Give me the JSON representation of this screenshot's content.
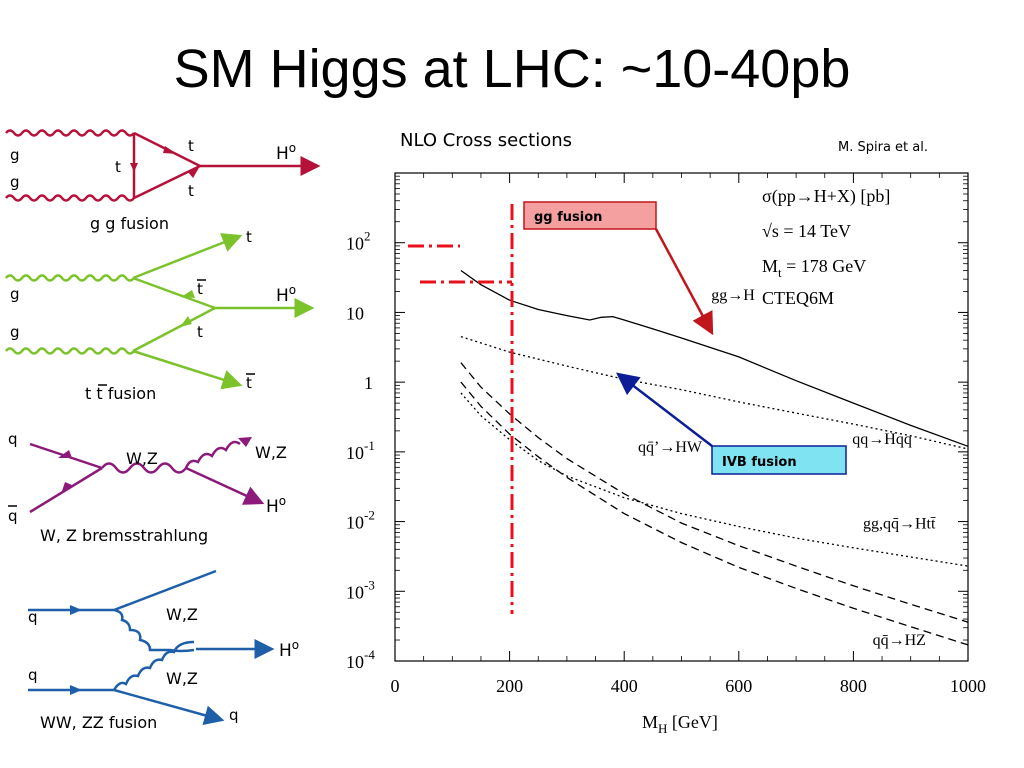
{
  "slide": {
    "title": "SM Higgs at LHC: ~10-40pb"
  },
  "diagrams": {
    "ggf": {
      "g1": "g",
      "g2": "g",
      "t_top": "t",
      "t_mid": "t",
      "t_bot": "t",
      "higgs": "H",
      "higgs_sup": "o",
      "caption": "g g fusion",
      "color": "#b5123a"
    },
    "ttf": {
      "t_out": "t",
      "g1": "g",
      "tbar_mid": "t",
      "higgs": "H",
      "higgs_sup": "o",
      "g2": "g",
      "t_mid": "t",
      "tbar_out": "t",
      "caption": "t t fusion",
      "caption_t1": "t",
      "caption_t2": "t",
      "caption_word": "fusion",
      "color": "#7cc22a"
    },
    "wzb": {
      "q": "q",
      "qbar": "q",
      "wz_mid": "W,Z",
      "wz_out": "W,Z",
      "higgs": "H",
      "higgs_sup": "o",
      "caption": "W, Z bremsstrahlung",
      "color": "#8b1a7a"
    },
    "vbf": {
      "q_in1": "q",
      "q_in2": "q",
      "wz_top": "W,Z",
      "wz_bot": "W,Z",
      "higgs": "H",
      "higgs_sup": "o",
      "q_out": "q",
      "caption": "WW, ZZ fusion",
      "color": "#1f5fa8"
    }
  },
  "plot": {
    "heading": "NLO Cross sections",
    "credit": "M. Spira et al.",
    "xlabel": "M",
    "xlabel_sub": "H",
    "xlabel_unit": "[GeV]",
    "info": {
      "line1": "σ(pp→H+X) [pb]",
      "line2": "√s = 14 TeV",
      "line3_a": "M",
      "line3_sub": "t",
      "line3_b": " = 178 GeV",
      "line4": "CTEQ6M"
    },
    "annotations": {
      "gg_fusion": "gg fusion",
      "gg_fusion_color": "#f4a0a0",
      "ivb_fusion": "IVB fusion",
      "ivb_fusion_color": "#7fe3f2"
    },
    "cutoff_x": 210,
    "cutoff_color": "#e8101a"
  },
  "chart_data": {
    "type": "line",
    "title": "NLO Cross sections",
    "xlabel": "M_H [GeV]",
    "ylabel": "",
    "xlim": [
      0,
      1000
    ],
    "ylim": [
      0.0001,
      1000
    ],
    "y_scale": "log",
    "x_ticks": [
      "0",
      "200",
      "400",
      "600",
      "800",
      "1000"
    ],
    "y_ticks": [
      {
        "base": "10",
        "exp": "-4"
      },
      {
        "base": "10",
        "exp": "-3"
      },
      {
        "base": "10",
        "exp": "-2"
      },
      {
        "base": "10",
        "exp": "-1"
      },
      {
        "base": "1",
        "exp": ""
      },
      {
        "base": "10",
        "exp": ""
      },
      {
        "base": "10",
        "exp": "2"
      }
    ],
    "series": [
      {
        "name": "gg→H",
        "style": "solid",
        "label_x": 590,
        "label_y": 15,
        "x": [
          115,
          150,
          200,
          250,
          300,
          340,
          360,
          380,
          400,
          450,
          500,
          600,
          700,
          800,
          900,
          1000
        ],
        "y": [
          40,
          25,
          15,
          11,
          9,
          7.8,
          8.5,
          8.7,
          7.8,
          5.8,
          4.3,
          2.3,
          1.05,
          0.5,
          0.24,
          0.12
        ]
      },
      {
        "name": "qq→Hqq",
        "style": "dotted",
        "label_x": 850,
        "label_y": 0.13,
        "x": [
          115,
          200,
          300,
          400,
          500,
          600,
          700,
          800,
          900,
          1000
        ],
        "y": [
          4.5,
          2.7,
          1.7,
          1.1,
          0.78,
          0.52,
          0.36,
          0.25,
          0.17,
          0.11
        ]
      },
      {
        "name": "qq̄’→HW",
        "style": "dashed",
        "label_x": 480,
        "label_y": 0.1,
        "x": [
          115,
          150,
          200,
          250,
          300,
          400,
          500,
          600,
          700,
          800,
          900,
          1000
        ],
        "y": [
          1.9,
          0.85,
          0.35,
          0.16,
          0.08,
          0.025,
          0.0095,
          0.0045,
          0.0023,
          0.0012,
          0.00065,
          0.00036
        ]
      },
      {
        "name": "qq̄→HZ",
        "style": "dashed",
        "label_x": 880,
        "label_y": 0.00017,
        "x": [
          115,
          150,
          200,
          250,
          300,
          400,
          500,
          600,
          700,
          800,
          900,
          1000
        ],
        "y": [
          1.0,
          0.45,
          0.18,
          0.085,
          0.043,
          0.013,
          0.005,
          0.0022,
          0.0011,
          0.00057,
          0.00031,
          0.00017
        ]
      },
      {
        "name": "gg,qq̄→Htt̄",
        "style": "dotted",
        "label_x": 880,
        "label_y": 0.008,
        "x": [
          115,
          150,
          200,
          250,
          300,
          400,
          500,
          600,
          700,
          800,
          900,
          1000
        ],
        "y": [
          0.7,
          0.33,
          0.15,
          0.075,
          0.045,
          0.022,
          0.013,
          0.0085,
          0.0058,
          0.0042,
          0.0031,
          0.0023
        ]
      }
    ]
  }
}
